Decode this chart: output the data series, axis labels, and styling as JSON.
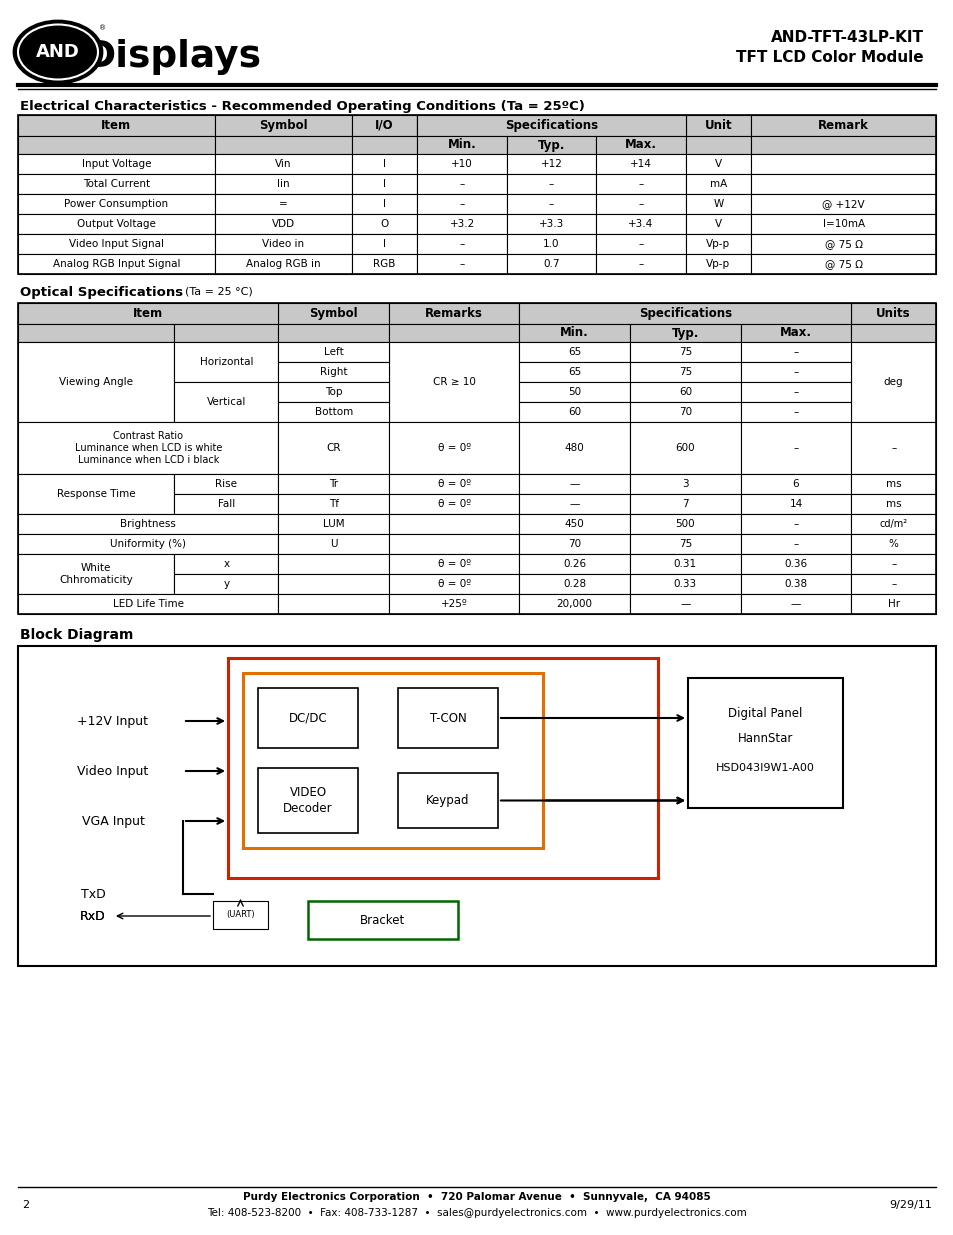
{
  "title_right_line1": "AND-TFT-43LP-KIT",
  "title_right_line2": "TFT LCD Color Module",
  "section1_title": "Electrical Characteristics - Recommended Operating Conditions (Ta = 25ºC)",
  "footer_line1": "Purdy Electronics Corporation  •  720 Palomar Avenue  •  Sunnyvale,  CA 94085",
  "footer_line2": "Tel: 408-523-8200  •  Fax: 408-733-1287  •  sales@purdyelectronics.com  •  www.purdyelectronics.com",
  "footer_page": "2",
  "footer_date": "9/29/11",
  "bg_color": "#ffffff",
  "header_bg": "#c8c8c8",
  "elec_rows": [
    [
      "Input Voltage",
      "Vin",
      "I",
      "+10",
      "+12",
      "+14",
      "V",
      ""
    ],
    [
      "Total Current",
      "Iin",
      "I",
      "–",
      "–",
      "–",
      "mA",
      ""
    ],
    [
      "Power Consumption",
      "=",
      "I",
      "–",
      "–",
      "–",
      "W",
      "@ +12V"
    ],
    [
      "Output Voltage",
      "VDD",
      "O",
      "+3.2",
      "+3.3",
      "+3.4",
      "V",
      "I=10mA"
    ],
    [
      "Video Input Signal",
      "Video in",
      "I",
      "–",
      "1.0",
      "–",
      "Vp-p",
      "@ 75 Ω"
    ],
    [
      "Analog RGB Input Signal",
      "Analog RGB in",
      "RGB",
      "–",
      "0.7",
      "–",
      "Vp-p",
      "@ 75 Ω"
    ]
  ]
}
